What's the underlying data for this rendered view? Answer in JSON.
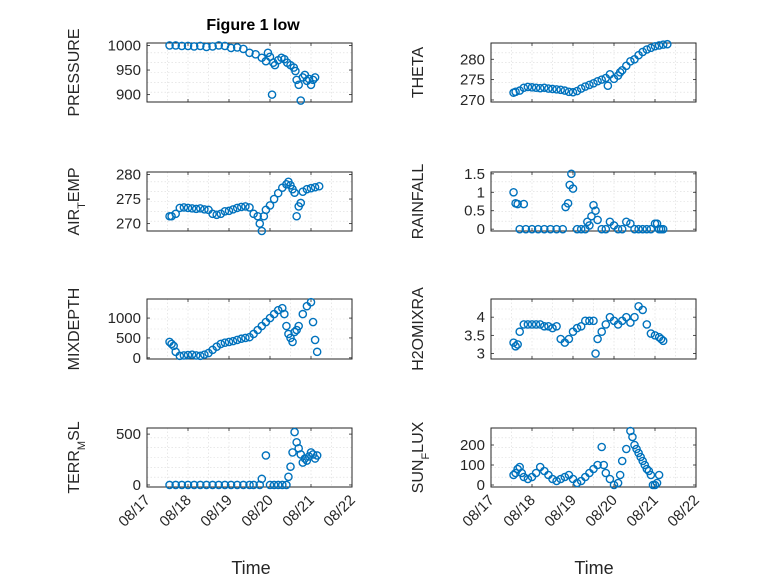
{
  "figure": {
    "title": "Figure 1 low",
    "x_axis_label": "Time",
    "x_ticks": [
      "08/17",
      "08/18",
      "08/19",
      "08/20",
      "08/21",
      "08/22"
    ],
    "marker_color": "#0072bd"
  },
  "chart_data": [
    {
      "id": "pressure",
      "type": "scatter",
      "ylabel": "PRESSURE",
      "ylabel_sub": "",
      "xlim": [
        0,
        5
      ],
      "ylim": [
        885,
        1005
      ],
      "yticks": [
        900,
        950,
        1000
      ],
      "ytick_labels": [
        "900",
        "950",
        "1000"
      ],
      "x": [
        0.55,
        0.7,
        0.85,
        1.0,
        1.15,
        1.3,
        1.45,
        1.6,
        1.75,
        1.9,
        2.05,
        2.2,
        2.35,
        2.5,
        2.65,
        2.8,
        2.9,
        2.95,
        3.0,
        3.05,
        3.08,
        3.12,
        3.2,
        3.28,
        3.35,
        3.42,
        3.5,
        3.58,
        3.62,
        3.65,
        3.7,
        3.75,
        3.8,
        3.85,
        3.9,
        3.95,
        4.0,
        4.05,
        4.1
      ],
      "y": [
        1000,
        1000,
        999,
        999,
        998,
        999,
        997,
        998,
        1000,
        999,
        995,
        996,
        993,
        985,
        982,
        975,
        968,
        985,
        977,
        900,
        965,
        960,
        970,
        975,
        972,
        965,
        960,
        955,
        948,
        930,
        920,
        888,
        935,
        940,
        928,
        932,
        920,
        930,
        935
      ]
    },
    {
      "id": "theta",
      "type": "scatter",
      "ylabel": "THETA",
      "ylabel_sub": "",
      "xlim": [
        0,
        5
      ],
      "ylim": [
        269.5,
        284
      ],
      "yticks": [
        270,
        275,
        280
      ],
      "ytick_labels": [
        "270",
        "275",
        "280"
      ],
      "x": [
        0.55,
        0.6,
        0.7,
        0.8,
        0.9,
        1.0,
        1.1,
        1.2,
        1.3,
        1.4,
        1.5,
        1.6,
        1.7,
        1.8,
        1.9,
        2.0,
        2.1,
        2.2,
        2.3,
        2.4,
        2.5,
        2.6,
        2.7,
        2.8,
        2.85,
        2.9,
        3.0,
        3.1,
        3.15,
        3.2,
        3.3,
        3.4,
        3.5,
        3.6,
        3.7,
        3.8,
        3.9,
        4.0,
        4.1,
        4.2,
        4.3
      ],
      "y": [
        271.8,
        272,
        272.3,
        273,
        273.2,
        273.1,
        273,
        272.9,
        273,
        272.8,
        272.7,
        272.6,
        272.5,
        272.3,
        272,
        271.9,
        272.2,
        272.8,
        273.3,
        273.7,
        274.1,
        274.6,
        275,
        275.4,
        273.5,
        276.3,
        275.2,
        276,
        276.8,
        277.3,
        278.4,
        279.5,
        280,
        281,
        281.8,
        282.4,
        282.8,
        283.2,
        283.4,
        283.6,
        283.7
      ]
    },
    {
      "id": "air_temp",
      "type": "scatter",
      "ylabel": "AIR",
      "ylabel_sub": "T",
      "ylabel_suffix": "EMP",
      "xlim": [
        0,
        5
      ],
      "ylim": [
        268.5,
        280.5
      ],
      "yticks": [
        270,
        275,
        280
      ],
      "ytick_labels": [
        "270",
        "275",
        "280"
      ],
      "x": [
        0.55,
        0.6,
        0.7,
        0.8,
        0.9,
        1.0,
        1.1,
        1.2,
        1.3,
        1.4,
        1.5,
        1.6,
        1.7,
        1.8,
        1.9,
        2.0,
        2.1,
        2.2,
        2.3,
        2.4,
        2.5,
        2.6,
        2.7,
        2.75,
        2.8,
        2.85,
        2.9,
        3.0,
        3.1,
        3.2,
        3.3,
        3.4,
        3.45,
        3.5,
        3.55,
        3.6,
        3.65,
        3.7,
        3.75,
        3.8,
        3.9,
        4.0,
        4.1,
        4.2
      ],
      "y": [
        271.5,
        271.5,
        272,
        273.2,
        273.3,
        273.2,
        273.1,
        273,
        273.1,
        272.9,
        272.8,
        272,
        271.8,
        272,
        272.5,
        272.6,
        272.9,
        273.2,
        273.4,
        273.5,
        273.3,
        272,
        271.5,
        270,
        268.5,
        271.5,
        272.8,
        273.7,
        275,
        276.2,
        277.3,
        278,
        278.5,
        277.8,
        277,
        276.3,
        271.5,
        273.5,
        274.2,
        276.5,
        277,
        277.2,
        277.4,
        277.6
      ]
    },
    {
      "id": "rainfall",
      "type": "scatter",
      "ylabel": "RAINFALL",
      "ylabel_sub": "",
      "xlim": [
        0,
        5
      ],
      "ylim": [
        -0.05,
        1.55
      ],
      "yticks": [
        0,
        0.5,
        1,
        1.5
      ],
      "ytick_labels": [
        "0",
        "0.5",
        "1",
        "1.5"
      ],
      "x": [
        0.55,
        0.6,
        0.65,
        0.8,
        0.7,
        0.85,
        1.0,
        1.15,
        1.3,
        1.45,
        1.6,
        1.75,
        1.82,
        1.88,
        1.92,
        1.96,
        2.0,
        2.1,
        2.2,
        2.3,
        2.35,
        2.4,
        2.45,
        2.5,
        2.55,
        2.6,
        2.7,
        2.8,
        2.9,
        3.0,
        3.1,
        3.2,
        3.3,
        3.4,
        3.5,
        3.6,
        3.7,
        3.8,
        3.9,
        4.0,
        4.05,
        4.1,
        4.15,
        4.2
      ],
      "y": [
        1.0,
        0.7,
        0.68,
        0.68,
        0,
        0,
        0,
        0,
        0,
        0,
        0,
        0,
        0.6,
        0.7,
        1.2,
        1.5,
        1.1,
        0,
        0,
        0,
        0.2,
        0.1,
        0.35,
        0.65,
        0.5,
        0.25,
        0,
        0,
        0.2,
        0.1,
        0,
        0,
        0.2,
        0.15,
        0,
        0,
        0,
        0,
        0,
        0.15,
        0.15,
        0,
        0,
        0
      ]
    },
    {
      "id": "mixdepth",
      "type": "scatter",
      "ylabel": "MIXDEPTH",
      "ylabel_sub": "",
      "xlim": [
        0,
        5
      ],
      "ylim": [
        -30,
        1480
      ],
      "yticks": [
        0,
        500,
        1000
      ],
      "ytick_labels": [
        "0",
        "500",
        "1000"
      ],
      "x": [
        0.55,
        0.6,
        0.65,
        0.7,
        0.8,
        0.9,
        1.0,
        1.1,
        1.2,
        1.3,
        1.4,
        1.5,
        1.6,
        1.7,
        1.8,
        1.9,
        2.0,
        2.1,
        2.2,
        2.3,
        2.4,
        2.5,
        2.6,
        2.7,
        2.8,
        2.9,
        3.0,
        3.1,
        3.2,
        3.3,
        3.35,
        3.4,
        3.45,
        3.5,
        3.55,
        3.6,
        3.65,
        3.7,
        3.8,
        3.9,
        4.0,
        4.05,
        4.1,
        4.15
      ],
      "y": [
        400,
        350,
        300,
        150,
        50,
        60,
        70,
        80,
        60,
        50,
        80,
        120,
        200,
        280,
        350,
        380,
        400,
        420,
        450,
        480,
        500,
        520,
        600,
        700,
        800,
        900,
        1000,
        1100,
        1200,
        1250,
        1100,
        800,
        600,
        500,
        400,
        650,
        700,
        800,
        1100,
        1300,
        1400,
        900,
        450,
        150
      ]
    },
    {
      "id": "h2omixra",
      "type": "scatter",
      "ylabel": "H2OMIXRA",
      "ylabel_sub": "",
      "xlim": [
        0,
        5
      ],
      "ylim": [
        2.85,
        4.5
      ],
      "yticks": [
        3,
        3.5,
        4
      ],
      "ytick_labels": [
        "3",
        "3.5",
        "4"
      ],
      "x": [
        0.55,
        0.6,
        0.65,
        0.7,
        0.8,
        0.9,
        1.0,
        1.1,
        1.2,
        1.3,
        1.4,
        1.5,
        1.6,
        1.7,
        1.8,
        1.9,
        2.0,
        2.1,
        2.2,
        2.3,
        2.4,
        2.5,
        2.55,
        2.6,
        2.7,
        2.8,
        2.9,
        3.0,
        3.1,
        3.2,
        3.3,
        3.4,
        3.5,
        3.6,
        3.7,
        3.8,
        3.9,
        4.0,
        4.1,
        4.15,
        4.2
      ],
      "y": [
        3.3,
        3.2,
        3.25,
        3.6,
        3.8,
        3.8,
        3.8,
        3.8,
        3.8,
        3.75,
        3.75,
        3.7,
        3.75,
        3.4,
        3.3,
        3.4,
        3.6,
        3.7,
        3.75,
        3.9,
        3.9,
        3.9,
        3.0,
        3.4,
        3.6,
        3.8,
        4.0,
        3.9,
        3.8,
        3.9,
        4.0,
        3.85,
        4.0,
        4.3,
        4.2,
        3.8,
        3.55,
        3.5,
        3.45,
        3.4,
        3.35
      ]
    },
    {
      "id": "terr_msl",
      "type": "scatter",
      "ylabel": "TERR",
      "ylabel_sub": "M",
      "ylabel_suffix": "SL",
      "xlim": [
        0,
        5
      ],
      "ylim": [
        -20,
        560
      ],
      "yticks": [
        0,
        500
      ],
      "ytick_labels": [
        "0",
        "500"
      ],
      "x": [
        0.55,
        0.7,
        0.85,
        1.0,
        1.15,
        1.3,
        1.45,
        1.6,
        1.75,
        1.9,
        2.05,
        2.2,
        2.35,
        2.5,
        2.6,
        2.75,
        2.8,
        2.9,
        3.0,
        3.1,
        3.2,
        3.3,
        3.4,
        3.45,
        3.5,
        3.55,
        3.6,
        3.65,
        3.7,
        3.75,
        3.8,
        3.85,
        3.9,
        3.95,
        4.0,
        4.05,
        4.1,
        4.15
      ],
      "y": [
        0,
        0,
        0,
        0,
        0,
        0,
        0,
        0,
        0,
        0,
        0,
        0,
        0,
        0,
        0,
        0,
        60,
        290,
        0,
        0,
        0,
        0,
        0,
        80,
        180,
        320,
        520,
        420,
        360,
        300,
        220,
        260,
        240,
        280,
        320,
        300,
        260,
        290
      ]
    },
    {
      "id": "sun_flux",
      "type": "scatter",
      "ylabel": "SUN",
      "ylabel_sub": "F",
      "ylabel_suffix": "LUX",
      "xlim": [
        0,
        5
      ],
      "ylim": [
        -10,
        285
      ],
      "yticks": [
        0,
        100,
        200
      ],
      "ytick_labels": [
        "0",
        "100",
        "200"
      ],
      "x": [
        0.55,
        0.6,
        0.65,
        0.7,
        0.75,
        0.8,
        0.9,
        1.0,
        1.1,
        1.2,
        1.3,
        1.4,
        1.5,
        1.6,
        1.7,
        1.8,
        1.9,
        2.0,
        2.1,
        2.2,
        2.3,
        2.4,
        2.5,
        2.6,
        2.7,
        2.75,
        2.8,
        2.9,
        3.0,
        3.1,
        3.15,
        3.2,
        3.3,
        3.4,
        3.45,
        3.5,
        3.55,
        3.6,
        3.65,
        3.7,
        3.75,
        3.8,
        3.85,
        3.9,
        3.95,
        4.0,
        4.05,
        4.1
      ],
      "y": [
        50,
        60,
        80,
        90,
        60,
        40,
        30,
        40,
        60,
        90,
        70,
        50,
        30,
        20,
        30,
        40,
        50,
        30,
        10,
        20,
        40,
        60,
        80,
        100,
        190,
        100,
        60,
        30,
        0,
        10,
        50,
        120,
        180,
        270,
        240,
        200,
        180,
        160,
        140,
        120,
        100,
        80,
        70,
        50,
        0,
        0,
        10,
        50
      ]
    }
  ]
}
